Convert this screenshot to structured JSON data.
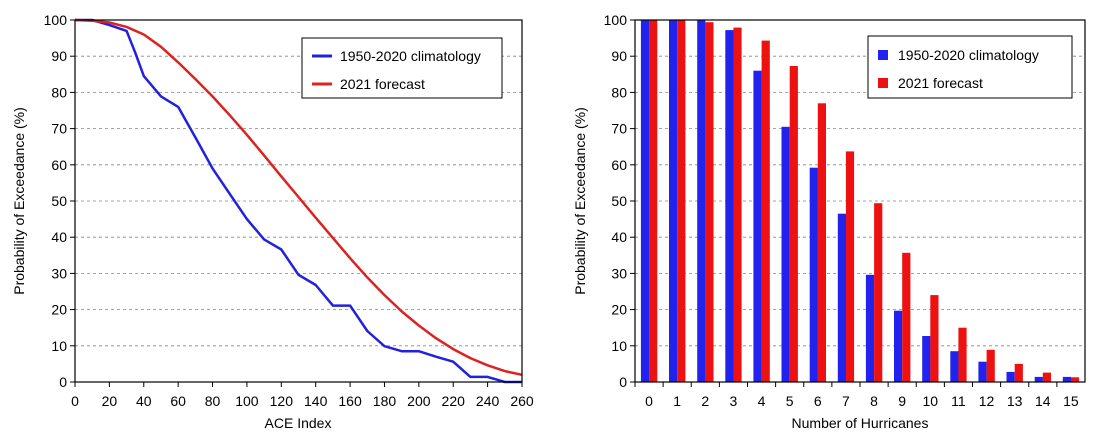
{
  "chart_data": [
    {
      "type": "line",
      "title": "",
      "xlabel": "ACE Index",
      "ylabel": "Probability of Exceedance (%)",
      "xlim": [
        0,
        260
      ],
      "ylim": [
        0,
        100
      ],
      "xticks": [
        0,
        20,
        40,
        60,
        80,
        100,
        120,
        140,
        160,
        180,
        200,
        220,
        240,
        260
      ],
      "yticks": [
        0,
        10,
        20,
        30,
        40,
        50,
        60,
        70,
        80,
        90,
        100
      ],
      "grid": "horizontal dashed",
      "legend_position": "top-right",
      "series": [
        {
          "name": "1950-2020 climatology",
          "color": "#2222dd",
          "x": [
            0,
            10,
            20,
            30,
            35,
            40,
            50,
            60,
            70,
            80,
            90,
            100,
            110,
            120,
            130,
            140,
            150,
            160,
            170,
            180,
            190,
            200,
            210,
            220,
            230,
            240,
            250,
            260
          ],
          "y": [
            100,
            100,
            98.6,
            97,
            91,
            84.5,
            78.9,
            76,
            67.6,
            59,
            52,
            45,
            39.4,
            36.6,
            29.6,
            26.8,
            21.1,
            21.1,
            14.1,
            9.9,
            8.5,
            8.5,
            7,
            5.6,
            1.4,
            1.4,
            0,
            0
          ]
        },
        {
          "name": "2021 forecast",
          "color": "#dd2222",
          "x": [
            0,
            10,
            20,
            30,
            40,
            50,
            60,
            70,
            80,
            90,
            100,
            110,
            120,
            130,
            140,
            150,
            160,
            170,
            180,
            190,
            200,
            210,
            220,
            230,
            240,
            250,
            260
          ],
          "y": [
            100,
            99.8,
            99.3,
            98.1,
            96,
            92.6,
            88.3,
            83.7,
            78.9,
            73.7,
            68.3,
            62.6,
            56.8,
            51.1,
            45.4,
            39.8,
            34.2,
            28.9,
            24,
            19.5,
            15.6,
            12.1,
            9.1,
            6.6,
            4.6,
            3,
            2
          ]
        }
      ]
    },
    {
      "type": "bar",
      "title": "",
      "xlabel": "Number of Hurricanes",
      "ylabel": "Probability of Exceedance (%)",
      "ylim": [
        0,
        100
      ],
      "yticks": [
        0,
        10,
        20,
        30,
        40,
        50,
        60,
        70,
        80,
        90,
        100
      ],
      "grid": "horizontal dashed",
      "legend_position": "top-right",
      "categories": [
        "0",
        "1",
        "2",
        "3",
        "4",
        "5",
        "6",
        "7",
        "8",
        "9",
        "10",
        "11",
        "12",
        "13",
        "14",
        "15"
      ],
      "series": [
        {
          "name": "1950-2020 climatology",
          "color": "#2222ee",
          "values": [
            100,
            100,
            100,
            97.2,
            86,
            70.5,
            59.2,
            46.5,
            29.6,
            19.7,
            12.7,
            8.5,
            5.6,
            2.8,
            1.4,
            1.4
          ]
        },
        {
          "name": "2021 forecast",
          "color": "#ee1111",
          "values": [
            100,
            100,
            99.4,
            97.9,
            94.3,
            87.3,
            77,
            63.7,
            49.4,
            35.7,
            24,
            15,
            8.9,
            5,
            2.6,
            1.3
          ]
        }
      ]
    }
  ]
}
